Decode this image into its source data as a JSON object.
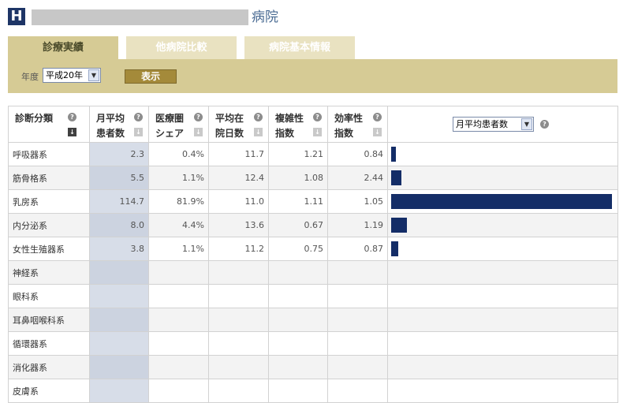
{
  "header": {
    "logo_letter": "H",
    "hospital_suffix": "病院"
  },
  "tabs": [
    {
      "label": "診療実績",
      "active": true
    },
    {
      "label": "他病院比較",
      "active": false
    },
    {
      "label": "病院基本情報",
      "active": false
    }
  ],
  "filter": {
    "year_label": "年度",
    "year_value": "平成20年",
    "show_button": "表示"
  },
  "table": {
    "headers": [
      {
        "line1": "診断分類",
        "line2": ""
      },
      {
        "line1": "月平均",
        "line2": "患者数"
      },
      {
        "line1": "医療圏",
        "line2": "シェア"
      },
      {
        "line1": "平均在",
        "line2": "院日数"
      },
      {
        "line1": "複雑性",
        "line2": "指数"
      },
      {
        "line1": "効率性",
        "line2": "指数"
      }
    ],
    "chart_select": "月平均患者数",
    "rows": [
      {
        "category": "呼吸器系",
        "patients": "2.3",
        "share": "0.4%",
        "days": "11.7",
        "complexity": "1.21",
        "efficiency": "0.84",
        "bar_value": 2.3
      },
      {
        "category": "筋骨格系",
        "patients": "5.5",
        "share": "1.1%",
        "days": "12.4",
        "complexity": "1.08",
        "efficiency": "2.44",
        "bar_value": 5.5
      },
      {
        "category": "乳房系",
        "patients": "114.7",
        "share": "81.9%",
        "days": "11.0",
        "complexity": "1.11",
        "efficiency": "1.05",
        "bar_value": 114.7
      },
      {
        "category": "内分泌系",
        "patients": "8.0",
        "share": "4.4%",
        "days": "13.6",
        "complexity": "0.67",
        "efficiency": "1.19",
        "bar_value": 8.0
      },
      {
        "category": "女性生殖器系",
        "patients": "3.8",
        "share": "1.1%",
        "days": "11.2",
        "complexity": "0.75",
        "efficiency": "0.87",
        "bar_value": 3.8
      },
      {
        "category": "神経系",
        "patients": "",
        "share": "",
        "days": "",
        "complexity": "",
        "efficiency": "",
        "bar_value": 0
      },
      {
        "category": "眼科系",
        "patients": "",
        "share": "",
        "days": "",
        "complexity": "",
        "efficiency": "",
        "bar_value": 0
      },
      {
        "category": "耳鼻咽喉科系",
        "patients": "",
        "share": "",
        "days": "",
        "complexity": "",
        "efficiency": "",
        "bar_value": 0
      },
      {
        "category": "循環器系",
        "patients": "",
        "share": "",
        "days": "",
        "complexity": "",
        "efficiency": "",
        "bar_value": 0
      },
      {
        "category": "消化器系",
        "patients": "",
        "share": "",
        "days": "",
        "complexity": "",
        "efficiency": "",
        "bar_value": 0
      },
      {
        "category": "皮膚系",
        "patients": "",
        "share": "",
        "days": "",
        "complexity": "",
        "efficiency": "",
        "bar_value": 0
      }
    ]
  },
  "colors": {
    "bar": "#142d67",
    "tab_active": "#d6cb95",
    "tab_inactive": "#e9e2c1",
    "selected_column": "#d7dde8"
  },
  "icons": {
    "help": "question-circle-icon",
    "sort": "sort-down-icon",
    "dropdown": "chevron-down-icon"
  }
}
